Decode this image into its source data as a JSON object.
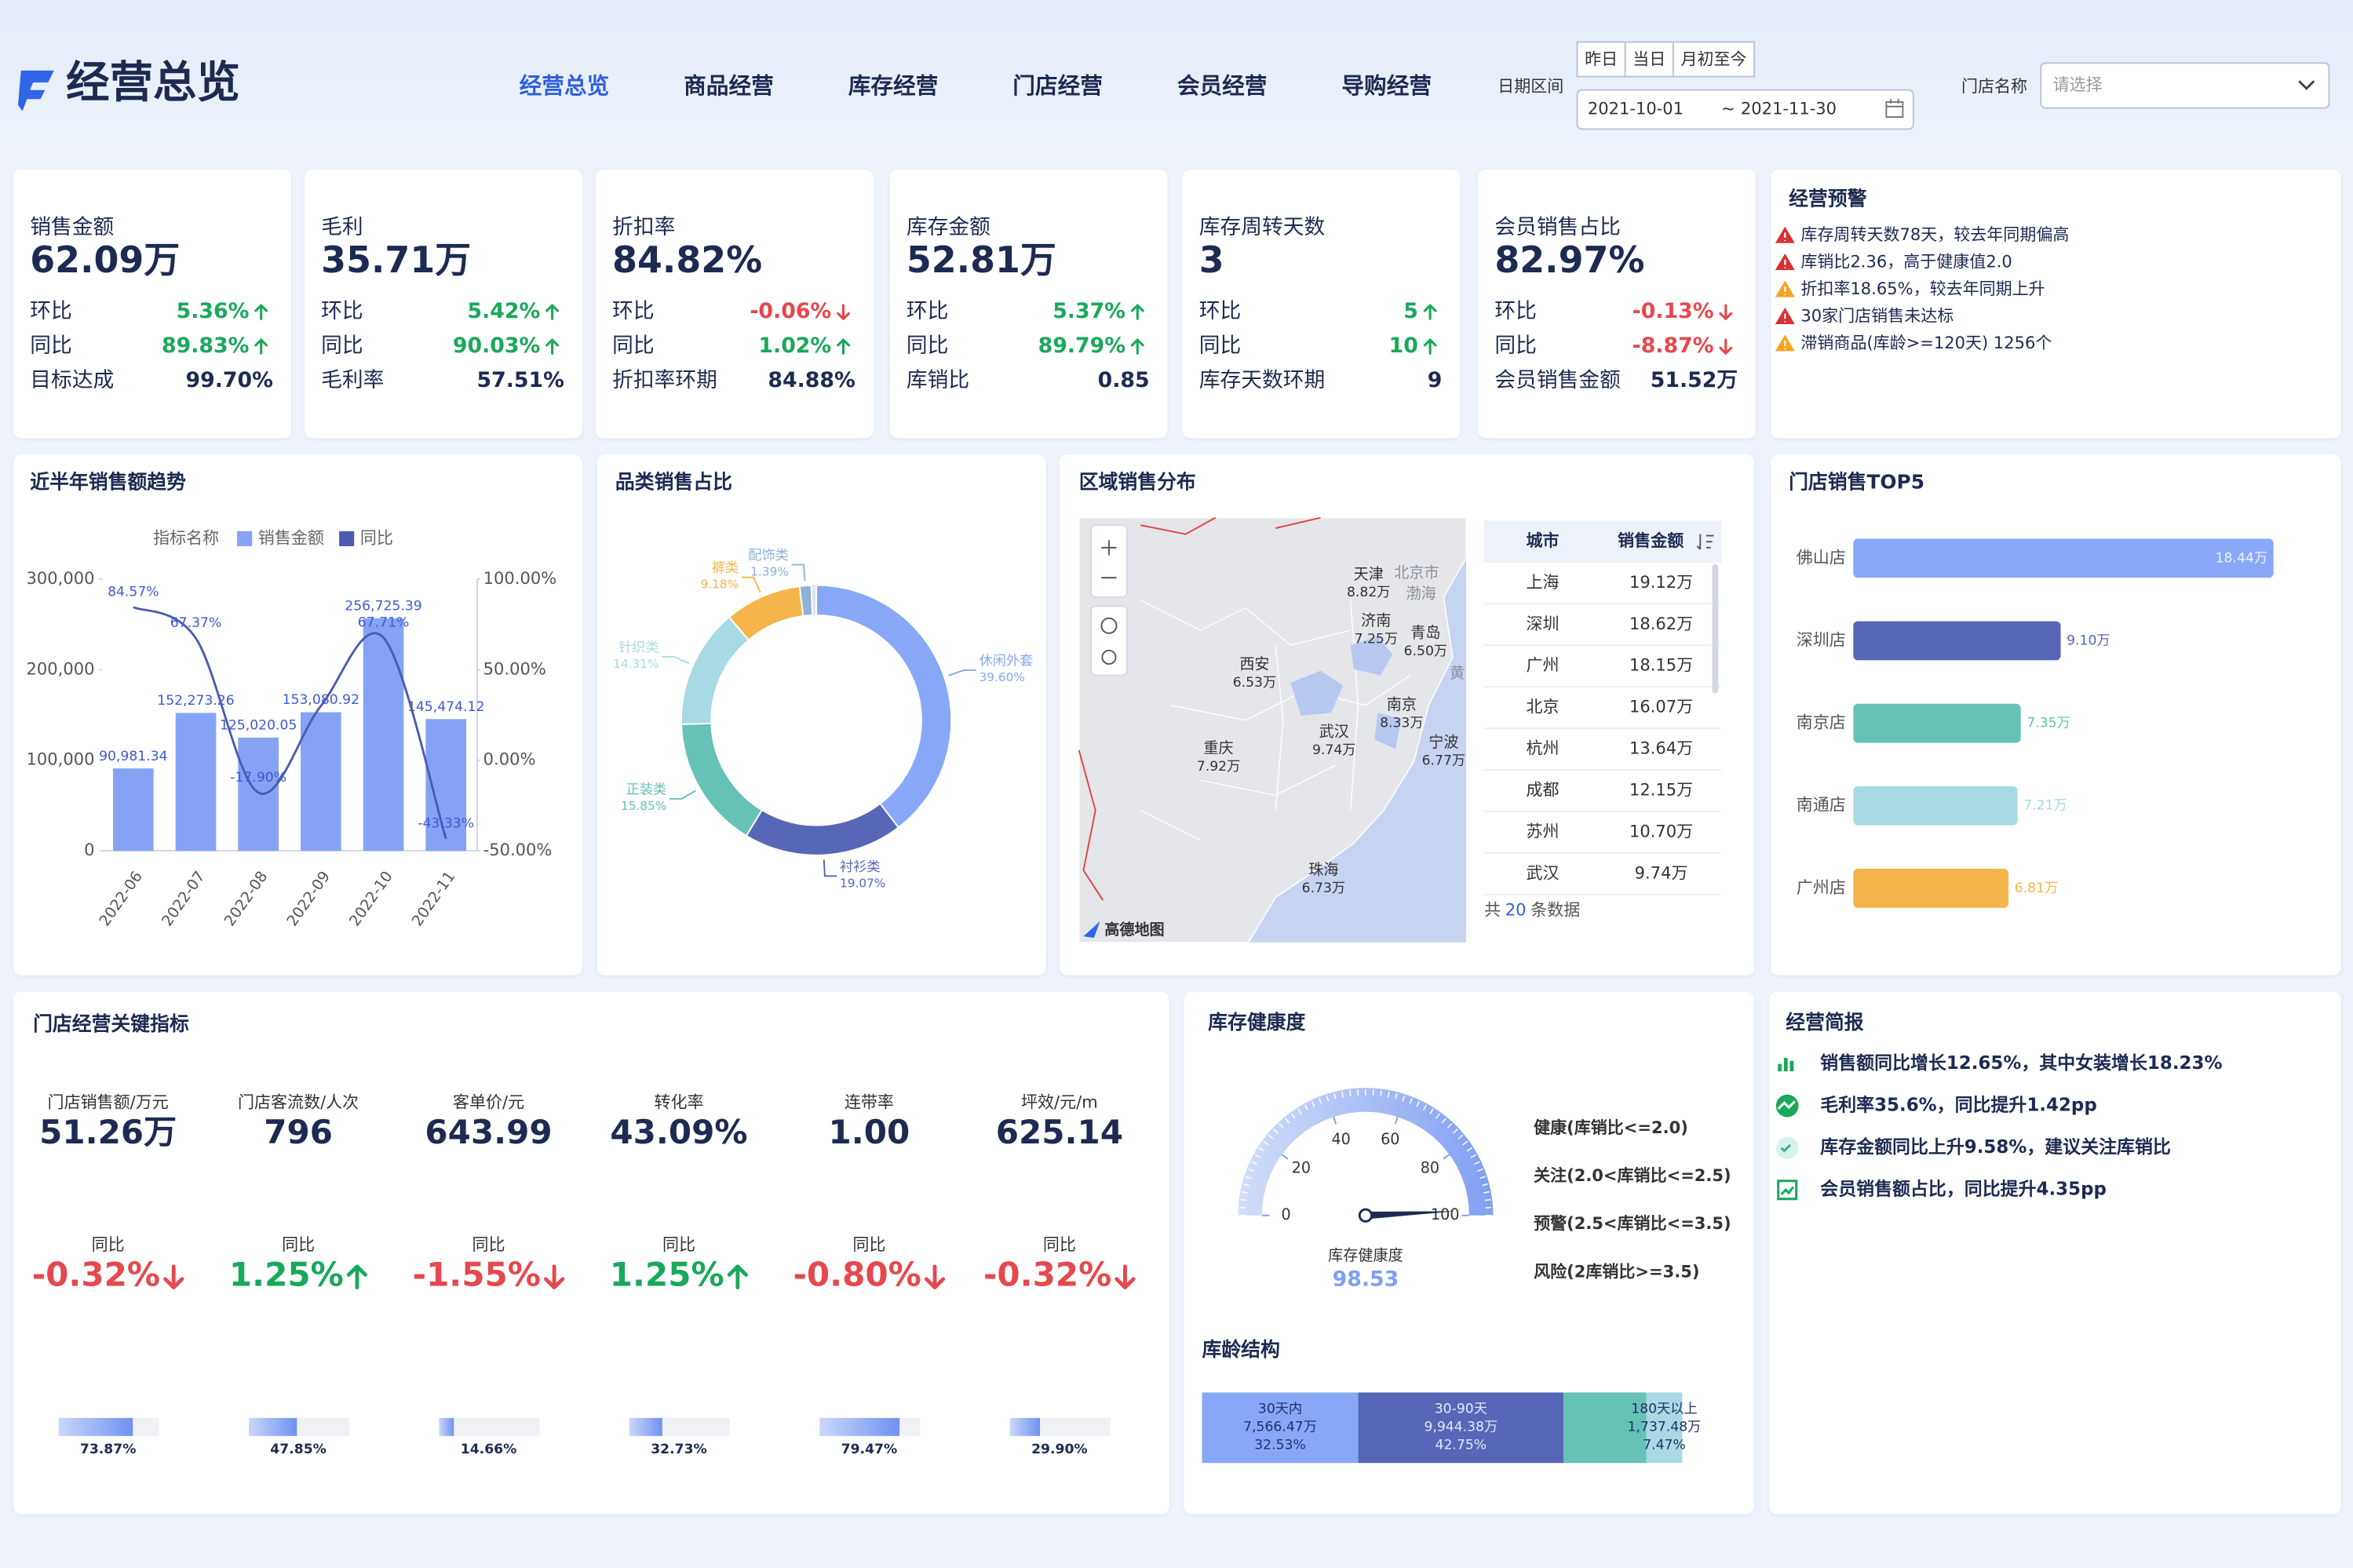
{
  "header": {
    "title": "经营总览",
    "nav": [
      "经营总览",
      "商品经营",
      "库存经营",
      "门店经营",
      "会员经营",
      "导购经营"
    ],
    "date_label": "日期区间",
    "quick": [
      "昨日",
      "当日",
      "月初至今"
    ],
    "start": "2021-10-01",
    "sep": "~",
    "end": "2021-11-30",
    "store_label": "门店名称",
    "store_placeholder": "请选择"
  },
  "kpis": [
    {
      "title": "销售金额",
      "value": "62.09万",
      "rows": [
        {
          "label": "环比",
          "value": "5.36%",
          "trend": "up"
        },
        {
          "label": "同比",
          "value": "89.83%",
          "trend": "up"
        },
        {
          "label": "目标达成",
          "value": "99.70%"
        }
      ]
    },
    {
      "title": "毛利",
      "value": "35.71万",
      "rows": [
        {
          "label": "环比",
          "value": "5.42%",
          "trend": "up"
        },
        {
          "label": "同比",
          "value": "90.03%",
          "trend": "up"
        },
        {
          "label": "毛利率",
          "value": "57.51%"
        }
      ]
    },
    {
      "title": "折扣率",
      "value": "84.82%",
      "rows": [
        {
          "label": "环比",
          "value": "-0.06%",
          "trend": "down"
        },
        {
          "label": "同比",
          "value": "1.02%",
          "trend": "up"
        },
        {
          "label": "折扣率环期",
          "value": "84.88%"
        }
      ]
    },
    {
      "title": "库存金额",
      "value": "52.81万",
      "rows": [
        {
          "label": "环比",
          "value": "5.37%",
          "trend": "up"
        },
        {
          "label": "同比",
          "value": "89.79%",
          "trend": "up"
        },
        {
          "label": "库销比",
          "value": "0.85"
        }
      ]
    },
    {
      "title": "库存周转天数",
      "value": "3",
      "rows": [
        {
          "label": "环比",
          "value": "5",
          "trend": "up"
        },
        {
          "label": "同比",
          "value": "10",
          "trend": "up"
        },
        {
          "label": "库存天数环期",
          "value": "9"
        }
      ]
    },
    {
      "title": "会员销售占比",
      "value": "82.97%",
      "rows": [
        {
          "label": "环比",
          "value": "-0.13%",
          "trend": "down"
        },
        {
          "label": "同比",
          "value": "-8.87%",
          "trend": "down"
        },
        {
          "label": "会员销售金额",
          "value": "51.52万"
        }
      ]
    }
  ],
  "alerts": {
    "title": "经营预警",
    "items": [
      {
        "text": "库存周转天数78天，较去年同期偏高",
        "level": "red"
      },
      {
        "text": "库销比2.36，高于健康值2.0",
        "level": "red"
      },
      {
        "text": "折扣率18.65%，较去年同期上升",
        "level": "orange"
      },
      {
        "text": "30家门店销售未达标",
        "level": "red"
      },
      {
        "text": "滞销商品(库龄>=120天) 1256个",
        "level": "orange"
      }
    ]
  },
  "trend": {
    "title": "近半年销售额趋势",
    "type": "bar-line",
    "legend_title": "指标名称",
    "categories": [
      "2022-06",
      "2022-07",
      "2022-08",
      "2022-09",
      "2022-10",
      "2022-11"
    ],
    "ylim": [
      0,
      300000
    ],
    "yticks": [
      0,
      {
        "value": 100000,
        "label": "100,000"
      },
      {
        "value": 200000,
        "label": "200,000"
      },
      {
        "value": 300000,
        "label": "300,000"
      }
    ],
    "y2lim": [
      -50,
      100
    ],
    "y2ticks": [
      {
        "value": -50,
        "label": "-50.00%"
      },
      {
        "value": 0,
        "label": "0.00%"
      },
      {
        "value": 50,
        "label": "50.00%"
      },
      {
        "value": 100,
        "label": "100.00%"
      }
    ],
    "series": [
      {
        "name": "销售金额",
        "color": "#84a3f5",
        "values": [
          90981.34,
          152273.26,
          125020.05,
          153080.92,
          256725.39,
          145474.12
        ],
        "value_labels": [
          "90,981.34",
          "152,273.26",
          "125,020.05",
          "153,080.92",
          "256,725.39",
          "145,474.12"
        ]
      },
      {
        "name": "同比",
        "color": "#4a5bb0",
        "axis": "y2",
        "values": [
          84.57,
          67.37,
          -17.9,
          30,
          67.71,
          -43.33
        ],
        "value_labels": [
          "84.57%",
          "67.37%",
          "-17.90%",
          null,
          "67.71%",
          "-43.33%"
        ]
      }
    ]
  },
  "category_share": {
    "title": "品类销售占比",
    "type": "donut",
    "categories": [
      "休闲外套",
      "衬衫类",
      "正装类",
      "针织类",
      "裤类",
      "配饰类"
    ],
    "values": [
      39.6,
      19.07,
      15.85,
      14.31,
      9.18,
      1.39
    ],
    "value_labels": [
      "39.60%",
      "19.07%",
      "15.85%",
      "14.31%",
      "9.18%",
      "1.39%"
    ],
    "colors": [
      "#86a8f7",
      "#5766b6",
      "#65c2b5",
      "#a7dae2",
      "#f6b54a",
      "#8fb2d8"
    ]
  },
  "region": {
    "title": "区域销售分布",
    "map_labels": [
      "北京市",
      "渤海",
      "黄"
    ],
    "attribution": "高德地图",
    "cities": [
      {
        "name": "天津",
        "value": "8.82万"
      },
      {
        "name": "济南",
        "value": "7.25万"
      },
      {
        "name": "青岛",
        "value": "6.50万"
      },
      {
        "name": "西安",
        "value": "6.53万"
      },
      {
        "name": "南京",
        "value": "8.33万"
      },
      {
        "name": "武汉",
        "value": "9.74万"
      },
      {
        "name": "宁波",
        "value": "6.77万"
      },
      {
        "name": "重庆",
        "value": "7.92万"
      },
      {
        "name": "珠海",
        "value": "6.73万"
      }
    ],
    "table": {
      "columns": [
        "城市",
        "销售金额"
      ],
      "rows": [
        [
          "上海",
          "19.12万"
        ],
        [
          "深圳",
          "18.62万"
        ],
        [
          "广州",
          "18.15万"
        ],
        [
          "北京",
          "16.07万"
        ],
        [
          "杭州",
          "13.64万"
        ],
        [
          "成都",
          "12.15万"
        ],
        [
          "苏州",
          "10.70万"
        ],
        [
          "武汉",
          "9.74万"
        ]
      ],
      "footer": [
        "共",
        "20",
        "条数据"
      ]
    }
  },
  "top5": {
    "title": "门店销售TOP5",
    "type": "hbar",
    "categories": [
      "佛山店",
      "深圳店",
      "南京店",
      "南通店",
      "广州店"
    ],
    "values": [
      18.44,
      9.1,
      7.35,
      7.21,
      6.81
    ],
    "value_labels": [
      "18.44万",
      "9.10万",
      "7.35万",
      "7.21万",
      "6.81万"
    ],
    "colors": [
      "#86a8f7",
      "#5766b6",
      "#65c2b5",
      "#a7dae2",
      "#f6b54a"
    ]
  },
  "store_metrics": {
    "title": "门店经营关键指标",
    "items": [
      {
        "label": "门店销售额/万元",
        "value": "51.26万",
        "yoy_label": "同比",
        "yoy": "-0.32%",
        "trend": "down",
        "progress": 73.87,
        "progress_label": "73.87%"
      },
      {
        "label": "门店客流数/人次",
        "value": "796",
        "yoy_label": "同比",
        "yoy": "1.25%",
        "trend": "up",
        "progress": 47.85,
        "progress_label": "47.85%"
      },
      {
        "label": "客单价/元",
        "value": "643.99",
        "yoy_label": "同比",
        "yoy": "-1.55%",
        "trend": "down",
        "progress": 14.66,
        "progress_label": "14.66%"
      },
      {
        "label": "转化率",
        "value": "43.09%",
        "yoy_label": "同比",
        "yoy": "1.25%",
        "trend": "up",
        "progress": 32.73,
        "progress_label": "32.73%"
      },
      {
        "label": "连带率",
        "value": "1.00",
        "yoy_label": "同比",
        "yoy": "-0.80%",
        "trend": "down",
        "progress": 79.47,
        "progress_label": "79.47%"
      },
      {
        "label": "坪效/元/m",
        "value": "625.14",
        "yoy_label": "同比",
        "yoy": "-0.32%",
        "trend": "down",
        "progress": 29.9,
        "progress_label": "29.90%"
      }
    ]
  },
  "inventory_health": {
    "title": "库存健康度",
    "type": "gauge",
    "label": "库存健康度",
    "value": 98.53,
    "range": [
      0,
      100
    ],
    "ticks": [
      0,
      20,
      40,
      60,
      80,
      100
    ],
    "legend": [
      "健康(库销比<=2.0)",
      "关注(2.0<库销比<=2.5)",
      "预警(2.5<库销比<=3.5)",
      "风险(2库销比>=3.5)"
    ]
  },
  "stock_age": {
    "title": "库龄结构",
    "type": "stacked-bar",
    "segments": [
      {
        "name": "30天内",
        "amount": "7,566.47万",
        "value": 32.53,
        "value_label": "32.53%",
        "color": "#86a8f7"
      },
      {
        "name": "30-90天",
        "amount": "9,944.38万",
        "value": 42.75,
        "value_label": "42.75%",
        "color": "#5766b6"
      },
      {
        "name": null,
        "amount": null,
        "value": 17.25,
        "value_label": null,
        "color": "#65c2b5"
      },
      {
        "name": "180天以上",
        "amount": "1,737.48万",
        "value": 7.47,
        "value_label": "7.47%",
        "color": "#a7dae2"
      }
    ]
  },
  "brief": {
    "title": "经营简报",
    "items": [
      "销售额同比增长12.65%，其中女装增长18.23%",
      "毛利率35.6%，同比提升1.42pp",
      "库存金额同比上升9.58%，建议关注库销比",
      "会员销售额占比，同比提升4.35pp"
    ]
  }
}
